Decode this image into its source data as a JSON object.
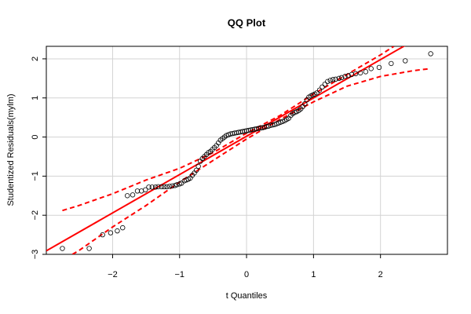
{
  "chart_data": {
    "type": "scatter",
    "title": "QQ Plot",
    "x_label": "t Quantiles",
    "y_label": "Studentized Residuals(mylm)",
    "xlim": [
      -2.99,
      3.0
    ],
    "ylim": [
      -3.0,
      2.32
    ],
    "xticks": [
      {
        "value": -2,
        "label": "−2"
      },
      {
        "value": -1,
        "label": "−1"
      },
      0,
      1,
      2
    ],
    "yticks": [
      {
        "value": -3,
        "label": "−3"
      },
      {
        "value": -2,
        "label": "−2"
      },
      {
        "value": -1,
        "label": "−1"
      },
      0,
      1,
      2
    ],
    "grid": true,
    "point_color": "#000000",
    "line_color": "#ff0000",
    "x": [
      -2.75,
      -2.35,
      -2.15,
      -2.03,
      -1.93,
      -1.85,
      -1.78,
      -1.7,
      -1.63,
      -1.57,
      -1.51,
      -1.46,
      -1.41,
      -1.36,
      -1.32,
      -1.27,
      -1.23,
      -1.19,
      -1.15,
      -1.11,
      -1.07,
      -1.04,
      -1.0,
      -0.97,
      -0.93,
      -0.9,
      -0.87,
      -0.84,
      -0.81,
      -0.78,
      -0.75,
      -0.72,
      -0.69,
      -0.66,
      -0.63,
      -0.6,
      -0.57,
      -0.54,
      -0.51,
      -0.48,
      -0.45,
      -0.42,
      -0.39,
      -0.36,
      -0.33,
      -0.3,
      -0.27,
      -0.24,
      -0.21,
      -0.18,
      -0.15,
      -0.12,
      -0.09,
      -0.06,
      -0.03,
      0.0,
      0.03,
      0.06,
      0.09,
      0.12,
      0.15,
      0.18,
      0.21,
      0.24,
      0.27,
      0.3,
      0.33,
      0.36,
      0.39,
      0.42,
      0.45,
      0.48,
      0.51,
      0.54,
      0.57,
      0.6,
      0.63,
      0.66,
      0.69,
      0.72,
      0.75,
      0.78,
      0.81,
      0.84,
      0.87,
      0.9,
      0.93,
      0.96,
      0.99,
      1.02,
      1.05,
      1.09,
      1.13,
      1.17,
      1.21,
      1.25,
      1.29,
      1.33,
      1.38,
      1.42,
      1.47,
      1.52,
      1.57,
      1.63,
      1.7,
      1.78,
      1.86,
      1.98,
      2.16,
      2.37,
      2.75
    ],
    "y": [
      -2.85,
      -2.85,
      -2.5,
      -2.45,
      -2.4,
      -2.32,
      -1.5,
      -1.48,
      -1.38,
      -1.38,
      -1.35,
      -1.28,
      -1.28,
      -1.28,
      -1.27,
      -1.27,
      -1.27,
      -1.27,
      -1.26,
      -1.25,
      -1.24,
      -1.22,
      -1.2,
      -1.18,
      -1.12,
      -1.1,
      -1.08,
      -1.05,
      -0.98,
      -0.92,
      -0.85,
      -0.75,
      -0.62,
      -0.55,
      -0.5,
      -0.45,
      -0.4,
      -0.37,
      -0.32,
      -0.27,
      -0.22,
      -0.15,
      -0.08,
      -0.04,
      0.0,
      0.04,
      0.06,
      0.08,
      0.09,
      0.1,
      0.11,
      0.12,
      0.13,
      0.14,
      0.15,
      0.16,
      0.17,
      0.18,
      0.19,
      0.2,
      0.21,
      0.22,
      0.23,
      0.24,
      0.25,
      0.27,
      0.28,
      0.3,
      0.31,
      0.32,
      0.34,
      0.36,
      0.38,
      0.4,
      0.42,
      0.45,
      0.48,
      0.55,
      0.6,
      0.63,
      0.65,
      0.68,
      0.72,
      0.78,
      0.85,
      0.95,
      1.02,
      1.05,
      1.08,
      1.1,
      1.13,
      1.2,
      1.28,
      1.35,
      1.42,
      1.45,
      1.47,
      1.48,
      1.5,
      1.52,
      1.55,
      1.57,
      1.6,
      1.62,
      1.64,
      1.67,
      1.75,
      1.78,
      1.88,
      1.95,
      2.13
    ],
    "reference_line": {
      "intercept": 0.02,
      "slope": 0.98
    },
    "upper_band": {
      "x": [
        -2.75,
        -2.5,
        -2,
        -1.5,
        -1,
        -0.5,
        0,
        0.5,
        1,
        1.5,
        2,
        2.2
      ],
      "y": [
        -1.88,
        -1.75,
        -1.45,
        -1.1,
        -0.8,
        -0.4,
        0.1,
        0.55,
        1.1,
        1.6,
        2.1,
        2.32
      ]
    },
    "lower_band": {
      "x": [
        -2.6,
        -2.5,
        -2,
        -1.5,
        -1,
        -0.5,
        0,
        0.5,
        1,
        1.5,
        2,
        2.5,
        2.75
      ],
      "y": [
        -3.0,
        -2.9,
        -2.3,
        -1.75,
        -1.15,
        -0.6,
        -0.05,
        0.45,
        0.9,
        1.3,
        1.55,
        1.7,
        1.75
      ]
    }
  }
}
